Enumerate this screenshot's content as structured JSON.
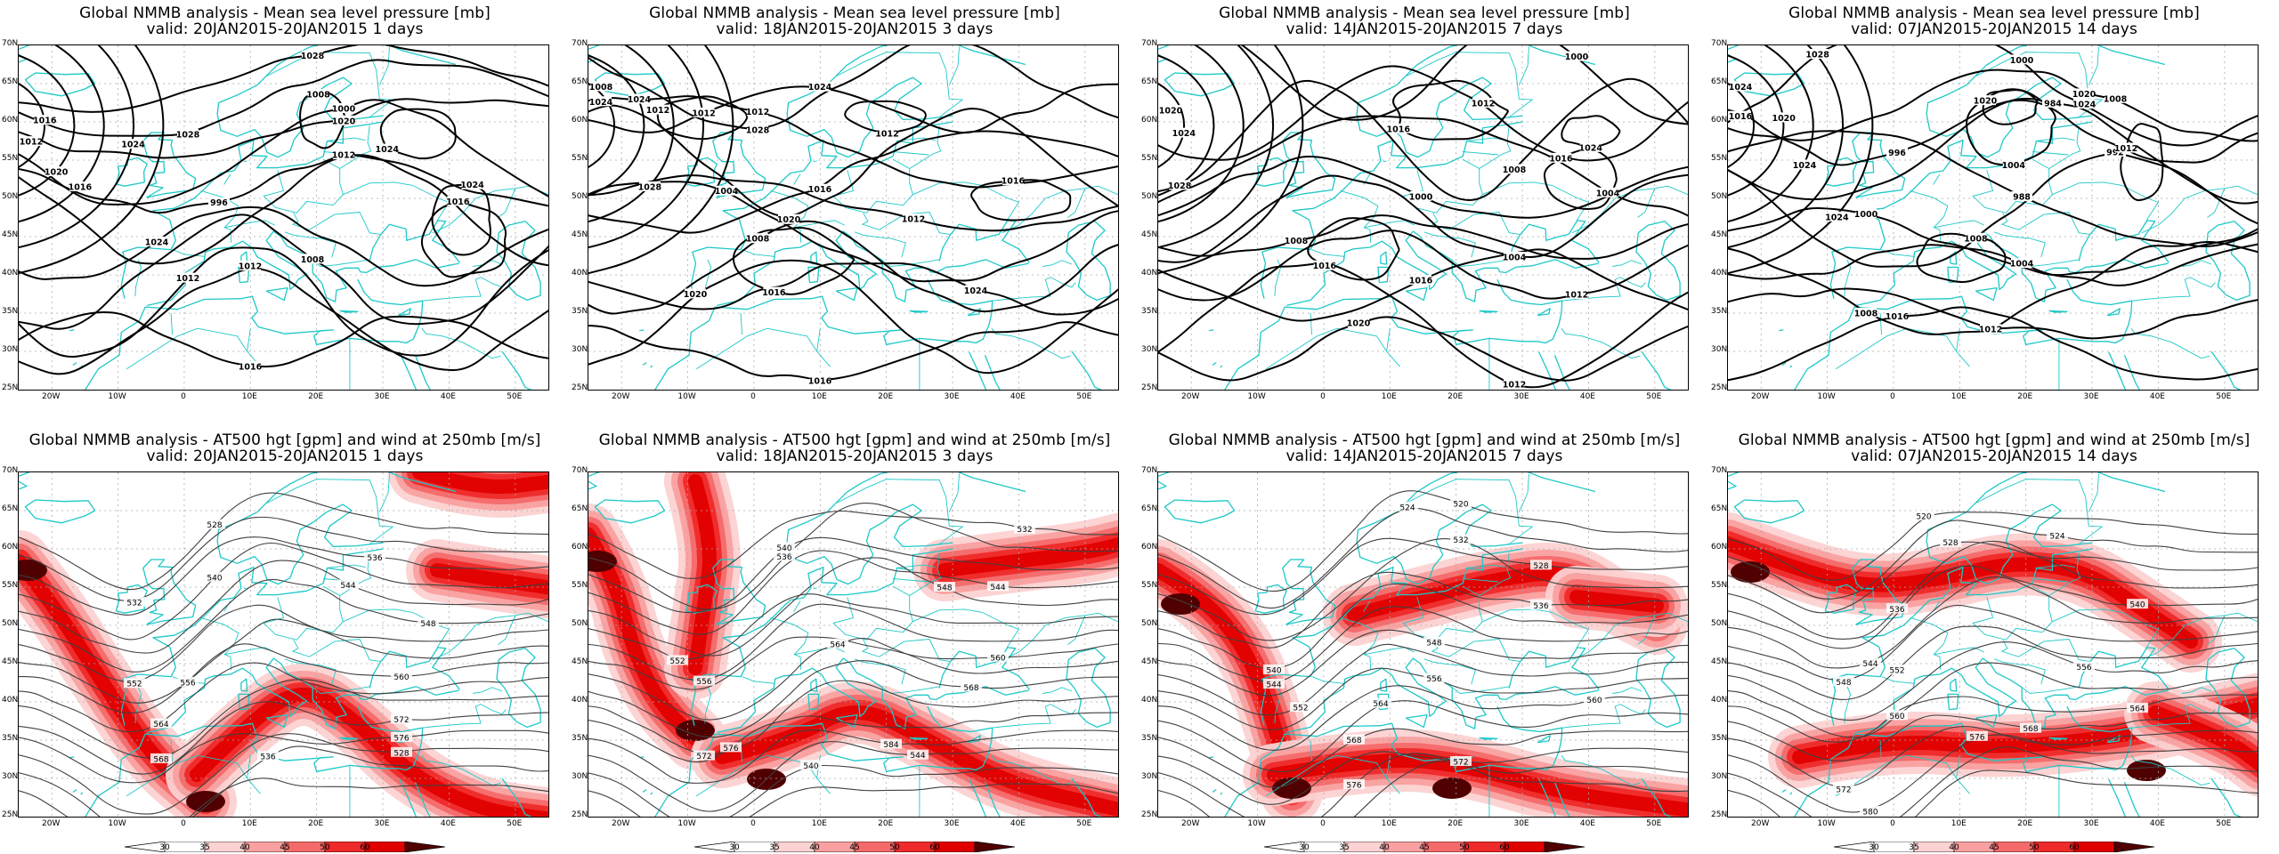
{
  "colors": {
    "coast": "#1ec8c8",
    "contour_mslp": "#000000",
    "contour_hgt": "#404040",
    "wind_shade": [
      "#ffffff",
      "#fcd2d2",
      "#f9a0a0",
      "#f46a6a",
      "#ef2a2a",
      "#e00000",
      "#500000"
    ]
  },
  "axes": {
    "y_ticks": [
      "70N",
      "65N",
      "60N",
      "55N",
      "50N",
      "45N",
      "40N",
      "35N",
      "30N",
      "25N"
    ],
    "x_ticks": [
      "20W",
      "10W",
      "0",
      "10E",
      "20E",
      "30E",
      "40E",
      "50E"
    ]
  },
  "colorbar": {
    "labels": [
      "30",
      "35",
      "40",
      "45",
      "50",
      "60"
    ]
  },
  "panels": [
    {
      "id": "mslp-1",
      "title1": "Global NMMB analysis - Mean sea level pressure [mb]",
      "title2": "valid: 20JAN2015-20JAN2015   1 days",
      "contour_labels": [
        "1028",
        "1028",
        "1020",
        "1000",
        "996",
        "1012",
        "1024",
        "1008",
        "1012",
        "1012",
        "1016",
        "1008",
        "1016",
        "1024",
        "1024",
        "1012",
        "1016",
        "1020",
        "1016",
        "1024"
      ]
    },
    {
      "id": "mslp-3",
      "title1": "Global NMMB analysis - Mean sea level pressure [mb]",
      "title2": "valid: 18JAN2015-20JAN2015   3 days",
      "contour_labels": [
        "1028",
        "1024",
        "1012",
        "1020",
        "1016",
        "1012",
        "1004",
        "1008",
        "1024",
        "1020",
        "1016",
        "1012",
        "1012",
        "1016",
        "1016",
        "1024",
        "1008",
        "1024",
        "1028",
        "1012"
      ]
    },
    {
      "id": "mslp-7",
      "title1": "Global NMMB analysis - Mean sea level pressure [mb]",
      "title2": "valid: 14JAN2015-20JAN2015   7 days",
      "contour_labels": [
        "1000",
        "1012",
        "1008",
        "1004",
        "1000",
        "1004",
        "1008",
        "1012",
        "1016",
        "1012",
        "1020",
        "1016",
        "1016",
        "1024",
        "1016",
        "1020",
        "1024",
        "1028"
      ]
    },
    {
      "id": "mslp-14",
      "title1": "Global NMMB analysis - Mean sea level pressure [mb]",
      "title2": "valid: 07JAN2015-20JAN2015   14 days",
      "contour_labels": [
        "1000",
        "1008",
        "996",
        "984",
        "988",
        "992",
        "1000",
        "1004",
        "1008",
        "1012",
        "1016",
        "1020",
        "1004",
        "1008",
        "1012",
        "1016",
        "1024",
        "1020",
        "1024",
        "1028",
        "1024",
        "1024",
        "1020"
      ]
    },
    {
      "id": "hgt-1",
      "title1": "Global NMMB analysis - AT500 hgt [gpm] and wind at 250mb [m/s]",
      "title2": "valid: 20JAN2015-20JAN2015   1 days",
      "contour_labels": [
        "528",
        "532",
        "536",
        "540",
        "544",
        "548",
        "552",
        "556",
        "560",
        "564",
        "568",
        "572",
        "576",
        "528",
        "536"
      ]
    },
    {
      "id": "hgt-3",
      "title1": "Global NMMB analysis - AT500 hgt [gpm] and wind at 250mb [m/s]",
      "title2": "valid: 18JAN2015-20JAN2015   3 days",
      "contour_labels": [
        "532",
        "536",
        "540",
        "544",
        "548",
        "552",
        "556",
        "560",
        "564",
        "568",
        "572",
        "576",
        "584",
        "544",
        "540"
      ]
    },
    {
      "id": "hgt-7",
      "title1": "Global NMMB analysis - AT500 hgt [gpm] and wind at 250mb [m/s]",
      "title2": "valid: 14JAN2015-20JAN2015   7 days",
      "contour_labels": [
        "520",
        "524",
        "528",
        "532",
        "536",
        "540",
        "544",
        "548",
        "552",
        "556",
        "560",
        "564",
        "568",
        "572",
        "576"
      ]
    },
    {
      "id": "hgt-14",
      "title1": "Global NMMB analysis - AT500 hgt [gpm] and wind at 250mb [m/s]",
      "title2": "valid: 07JAN2015-20JAN2015   14 days",
      "contour_labels": [
        "520",
        "524",
        "528",
        "536",
        "540",
        "544",
        "548",
        "552",
        "556",
        "560",
        "564",
        "568",
        "572",
        "576",
        "580"
      ]
    }
  ]
}
